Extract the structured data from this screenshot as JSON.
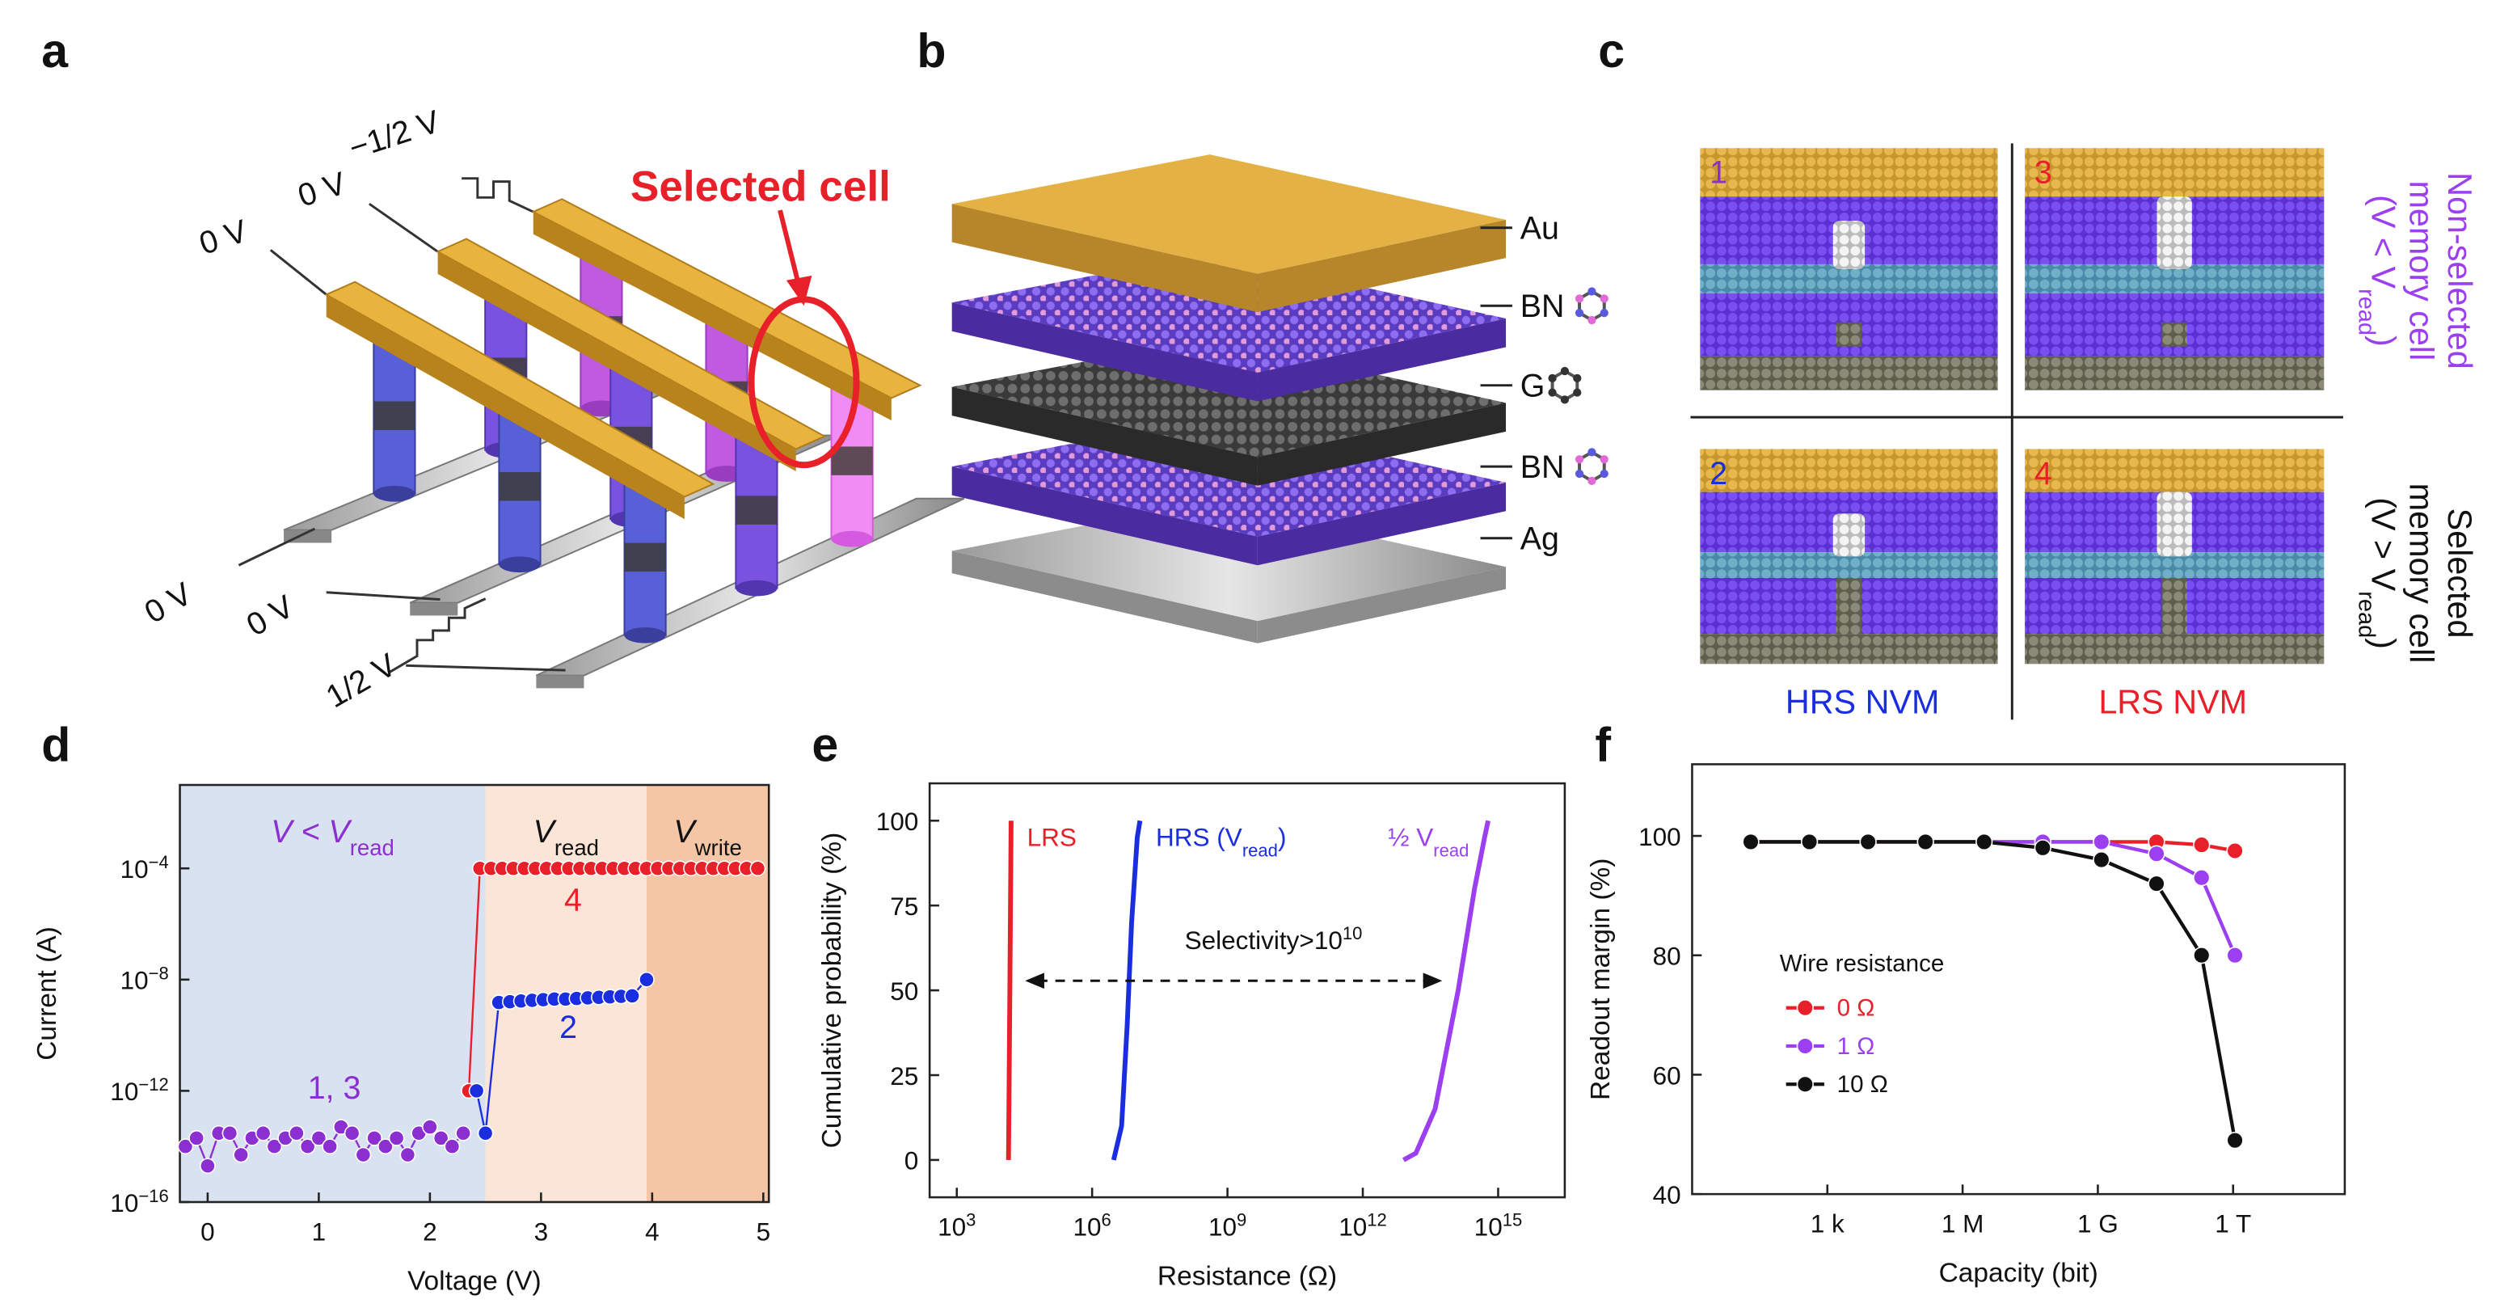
{
  "panels": {
    "a": {
      "label": "a",
      "voltages": [
        "−1/2 V",
        "0 V",
        "0 V",
        "0 V",
        "0 V",
        "1/2 V"
      ],
      "callout": "Selected cell"
    },
    "b": {
      "label": "b",
      "layers": [
        "Au",
        "BN",
        "G",
        "BN",
        "Ag"
      ]
    },
    "c": {
      "label": "c",
      "cells": [
        "1",
        "3",
        "2",
        "4"
      ],
      "columns": [
        "HRS NVM",
        "LRS NVM"
      ],
      "rows": [
        {
          "lines": [
            "Non-selected",
            "memory cell"
          ],
          "formula": "(V < V",
          "sub": "read",
          "close": ")"
        },
        {
          "lines": [
            "Selected",
            "memory cell"
          ],
          "formula": "(V > V",
          "sub": "read",
          "close": ")"
        }
      ]
    }
  },
  "chart_data": [
    {
      "label": "d",
      "type": "scatter",
      "connect": true,
      "x_label": "Voltage (V)",
      "y_label": "Current (A)",
      "xlim": [
        -0.25,
        5.05
      ],
      "xticks": [
        0,
        1,
        2,
        3,
        4,
        5
      ],
      "yscale": "log",
      "ylim": [
        1e-16,
        0.1
      ],
      "yticks": [
        {
          "value": 1e-16,
          "label": "10",
          "exp": "−16"
        },
        {
          "value": 1e-12,
          "label": "10",
          "exp": "−12"
        },
        {
          "value": 1e-08,
          "label": "10",
          "exp": "−8"
        },
        {
          "value": 0.0001,
          "label": "10",
          "exp": "−4"
        }
      ],
      "regions": [
        {
          "x": [
            -0.25,
            2.5
          ],
          "color": "#d9e2f1",
          "text": "V < V",
          "sub": "read",
          "text_color": "#8b2fd0"
        },
        {
          "x": [
            2.5,
            3.95
          ],
          "color": "#fbe5d6",
          "text": "V",
          "sub": "read",
          "text_color": "#111"
        },
        {
          "x": [
            3.95,
            5.05
          ],
          "color": "#f4c6a6",
          "text": "V",
          "sub": "write",
          "text_color": "#111"
        }
      ],
      "series": [
        {
          "color": "#8b2fd0",
          "x": [
            -0.2,
            -0.1,
            0,
            0.1,
            0.2,
            0.3,
            0.4,
            0.5,
            0.6,
            0.7,
            0.8,
            0.9,
            1.0,
            1.1,
            1.2,
            1.3,
            1.4,
            1.5,
            1.6,
            1.7,
            1.8,
            1.9,
            2.0,
            2.1,
            2.2,
            2.3
          ],
          "values": [
            1e-14,
            2e-14,
            2e-15,
            3e-14,
            3e-14,
            5e-15,
            2e-14,
            3e-14,
            1e-14,
            2e-14,
            3e-14,
            1e-14,
            2e-14,
            1e-14,
            5e-14,
            3e-14,
            5e-15,
            2e-14,
            1e-14,
            2e-14,
            5e-15,
            3e-14,
            5e-14,
            2e-14,
            1e-14,
            3e-14
          ]
        },
        {
          "color": "#e8202a",
          "x": [
            2.35,
            2.45,
            2.55,
            2.65,
            2.75,
            2.85,
            2.95,
            3.05,
            3.15,
            3.25,
            3.35,
            3.45,
            3.55,
            3.65,
            3.75,
            3.85,
            3.95,
            4.05,
            4.15,
            4.25,
            4.35,
            4.45,
            4.55,
            4.65,
            4.75,
            4.85,
            4.95
          ],
          "values": [
            1e-12,
            0.0001,
            0.0001,
            0.0001,
            0.0001,
            0.0001,
            0.0001,
            0.0001,
            0.0001,
            0.0001,
            0.0001,
            0.0001,
            0.0001,
            0.0001,
            0.0001,
            0.0001,
            0.0001,
            0.0001,
            0.0001,
            0.0001,
            0.0001,
            0.0001,
            0.0001,
            0.0001,
            0.0001,
            0.0001,
            0.0001
          ]
        },
        {
          "color": "#1a2ee0",
          "x": [
            2.42,
            2.5,
            2.62,
            2.72,
            2.82,
            2.92,
            3.02,
            3.12,
            3.22,
            3.32,
            3.42,
            3.52,
            3.62,
            3.72,
            3.82,
            3.95
          ],
          "values": [
            1e-12,
            3e-14,
            1.5e-09,
            1.6e-09,
            1.7e-09,
            1.8e-09,
            1.9e-09,
            2e-09,
            2e-09,
            2.1e-09,
            2.2e-09,
            2.3e-09,
            2.4e-09,
            2.5e-09,
            2.6e-09,
            1e-08
          ]
        }
      ],
      "annotations": [
        {
          "text": "1, 3",
          "color": "#8b2fd0"
        },
        {
          "text": "2",
          "color": "#1a2ee0"
        },
        {
          "text": "4",
          "color": "#e8202a"
        }
      ]
    },
    {
      "label": "e",
      "type": "line",
      "x_label": "Resistance (Ω)",
      "y_label": "Cumulative probability (%)",
      "xscale": "log",
      "xlim": [
        250,
        3e+16
      ],
      "xticks": [
        {
          "value": 1000,
          "label": "10",
          "exp": "3"
        },
        {
          "value": 1000000,
          "label": "10",
          "exp": "6"
        },
        {
          "value": 1000000000,
          "label": "10",
          "exp": "9"
        },
        {
          "value": 1000000000000,
          "label": "10",
          "exp": "12"
        },
        {
          "value": 1000000000000000,
          "label": "10",
          "exp": "15"
        }
      ],
      "ylim": [
        -11,
        111
      ],
      "yticks": [
        0,
        25,
        50,
        75,
        100
      ],
      "series": [
        {
          "name": "LRS",
          "color": "#e8202a",
          "x": [
            14000,
            14500,
            15000,
            15500,
            16000
          ],
          "values": [
            0,
            25,
            50,
            75,
            100
          ]
        },
        {
          "name": "HRS (V",
          "name_sub": "read",
          "name_tail": ")",
          "color": "#1a2ee0",
          "x": [
            3000000,
            4500000,
            6000000,
            7500000,
            10000000,
            11500000
          ],
          "values": [
            0,
            10,
            40,
            70,
            95,
            100
          ]
        },
        {
          "name": "½ V",
          "name_sub": "read",
          "color": "#9b3ff0",
          "x": [
            8000000000000,
            15000000000000,
            40000000000000,
            130000000000000,
            300000000000000,
            500000000000000,
            600000000000000
          ],
          "values": [
            0,
            2,
            15,
            50,
            80,
            95,
            100
          ]
        }
      ],
      "annotation": {
        "text": "Selectivity>10",
        "sup": "10"
      }
    },
    {
      "label": "f",
      "type": "line",
      "markers": true,
      "x_label": "Capacity (bit)",
      "y_label": "Readout margin (%)",
      "xscale": "log",
      "xlim": [
        1,
        300000000000000.0
      ],
      "xticks": [
        {
          "value": 1000,
          "label": "1 k"
        },
        {
          "value": 1000000,
          "label": "1 M"
        },
        {
          "value": 1000000000,
          "label": "1 G"
        },
        {
          "value": 1000000000000,
          "label": "1 T"
        }
      ],
      "ylim": [
        40,
        112
      ],
      "yticks": [
        40,
        60,
        80,
        100
      ],
      "legend_title": "Wire resistance",
      "legend": "left",
      "series": [
        {
          "name": "0 Ω",
          "color": "#e8202a",
          "x": [
            20,
            400,
            8000,
            150000,
            3000000,
            60000000,
            1200000000,
            20000000000,
            200000000000,
            1100000000000
          ],
          "values": [
            99,
            99,
            99,
            99,
            99,
            99,
            99,
            99,
            98.5,
            97.5
          ]
        },
        {
          "name": "1 Ω",
          "color": "#9b3ff0",
          "x": [
            20,
            400,
            8000,
            150000,
            3000000,
            60000000,
            1200000000,
            20000000000,
            200000000000,
            1100000000000
          ],
          "values": [
            99,
            99,
            99,
            99,
            99,
            99,
            99,
            97,
            93,
            80
          ]
        },
        {
          "name": "10 Ω",
          "color": "#111111",
          "x": [
            20,
            400,
            8000,
            150000,
            3000000,
            60000000,
            1200000000,
            20000000000,
            200000000000,
            1100000000000
          ],
          "values": [
            99,
            99,
            99,
            99,
            99,
            98,
            96,
            92,
            80,
            49
          ]
        }
      ]
    }
  ]
}
